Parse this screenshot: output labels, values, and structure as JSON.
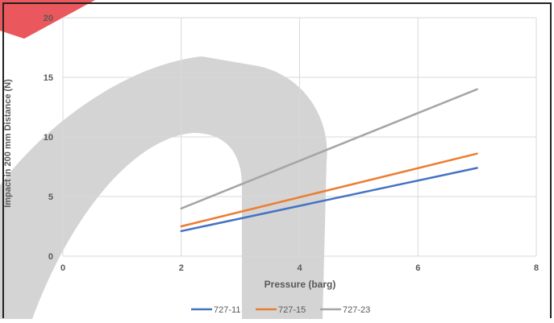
{
  "chart_data": {
    "type": "line",
    "title": "",
    "xlabel": "Pressure (barg)",
    "ylabel": "Impact in 200 mm Distance (N)",
    "xlim": [
      0,
      8
    ],
    "ylim": [
      0,
      20
    ],
    "xticks": [
      0,
      2,
      4,
      6,
      8
    ],
    "yticks": [
      0,
      5,
      10,
      15,
      20
    ],
    "grid": true,
    "legend_position": "bottom",
    "series": [
      {
        "name": "727-11",
        "color": "#4472C4",
        "x": [
          2,
          7
        ],
        "y": [
          2.1,
          7.4
        ]
      },
      {
        "name": "727-15",
        "color": "#ED7D31",
        "x": [
          2,
          7
        ],
        "y": [
          2.5,
          8.6
        ]
      },
      {
        "name": "727-23",
        "color": "#A5A5A5",
        "x": [
          2,
          7
        ],
        "y": [
          4.0,
          14.0
        ]
      }
    ]
  },
  "colors": {
    "watermark_gray": "#cfcfcf",
    "watermark_red": "#e8454a",
    "gridline": "#d9d9d9",
    "tick_text": "#595959"
  }
}
